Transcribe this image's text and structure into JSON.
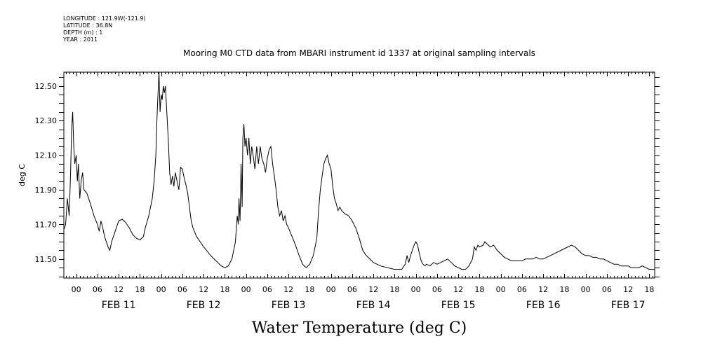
{
  "header": {
    "longitude": "LONGITUDE : 121.9W(-121.9)",
    "latitude": "LATITUDE : 36.8N",
    "depth": "DEPTH (m) : 1",
    "year": "YEAR : 2011"
  },
  "chart_data": {
    "type": "line",
    "title": "Mooring M0 CTD data from MBARI instrument id 1337 at original sampling intervals",
    "ylabel": "deg C",
    "xlabel": "Water Temperature (deg C)",
    "ylim": [
      11.39,
      12.58
    ],
    "xlim": [
      -3.5,
      163.5
    ],
    "x_unit": "hours from 00 FEB 11 2011",
    "yticks": [
      "11.50",
      "11.70",
      "11.90",
      "12.10",
      "12.30",
      "12.50"
    ],
    "xtick_hour_labels": [
      "00",
      "06",
      "12",
      "18",
      "00",
      "06",
      "12",
      "18",
      "00",
      "06",
      "12",
      "18",
      "00",
      "06",
      "12",
      "18",
      "00",
      "06",
      "12",
      "18",
      "00",
      "06",
      "12",
      "18",
      "00",
      "06",
      "12",
      "18"
    ],
    "day_labels": [
      "FEB 11",
      "FEB 12",
      "FEB 13",
      "FEB 14",
      "FEB 15",
      "FEB 16",
      "FEB 17"
    ],
    "grid": false,
    "series": [
      {
        "name": "",
        "points": [
          [
            -3.5,
            11.67
          ],
          [
            -3.0,
            11.7
          ],
          [
            -2.5,
            11.85
          ],
          [
            -2.0,
            11.75
          ],
          [
            -1.6,
            12.0
          ],
          [
            -1.3,
            12.25
          ],
          [
            -1.0,
            12.35
          ],
          [
            -0.7,
            12.15
          ],
          [
            -0.4,
            12.05
          ],
          [
            0.0,
            12.1
          ],
          [
            0.3,
            11.95
          ],
          [
            0.6,
            12.05
          ],
          [
            1.0,
            11.85
          ],
          [
            1.4,
            11.95
          ],
          [
            1.8,
            12.0
          ],
          [
            2.2,
            11.9
          ],
          [
            3.0,
            11.88
          ],
          [
            4.0,
            11.82
          ],
          [
            5.0,
            11.75
          ],
          [
            6.0,
            11.7
          ],
          [
            6.5,
            11.66
          ],
          [
            7.0,
            11.72
          ],
          [
            7.5,
            11.68
          ],
          [
            8.0,
            11.63
          ],
          [
            9.0,
            11.57
          ],
          [
            9.5,
            11.55
          ],
          [
            10.0,
            11.6
          ],
          [
            11.0,
            11.66
          ],
          [
            12.0,
            11.72
          ],
          [
            13.0,
            11.73
          ],
          [
            14.0,
            11.71
          ],
          [
            15.0,
            11.68
          ],
          [
            16.0,
            11.64
          ],
          [
            17.0,
            11.62
          ],
          [
            18.0,
            11.61
          ],
          [
            19.0,
            11.63
          ],
          [
            19.5,
            11.68
          ],
          [
            20.5,
            11.75
          ],
          [
            21.5,
            11.85
          ],
          [
            22.0,
            11.95
          ],
          [
            22.5,
            12.1
          ],
          [
            22.8,
            12.3
          ],
          [
            23.1,
            12.45
          ],
          [
            23.4,
            12.58
          ],
          [
            23.7,
            12.35
          ],
          [
            24.0,
            12.45
          ],
          [
            24.3,
            12.42
          ],
          [
            24.6,
            12.5
          ],
          [
            24.9,
            12.46
          ],
          [
            25.2,
            12.5
          ],
          [
            25.6,
            12.35
          ],
          [
            26.0,
            12.2
          ],
          [
            26.4,
            12.0
          ],
          [
            26.8,
            11.93
          ],
          [
            27.2,
            11.98
          ],
          [
            27.6,
            11.92
          ],
          [
            28.0,
            12.0
          ],
          [
            28.5,
            11.95
          ],
          [
            29.0,
            11.9
          ],
          [
            29.5,
            12.03
          ],
          [
            30.0,
            12.02
          ],
          [
            30.5,
            11.97
          ],
          [
            31.0,
            11.93
          ],
          [
            31.5,
            11.88
          ],
          [
            32.0,
            11.8
          ],
          [
            32.5,
            11.72
          ],
          [
            33.0,
            11.68
          ],
          [
            34.0,
            11.63
          ],
          [
            36.0,
            11.57
          ],
          [
            38.0,
            11.52
          ],
          [
            40.0,
            11.48
          ],
          [
            41.0,
            11.46
          ],
          [
            42.0,
            11.45
          ],
          [
            43.0,
            11.46
          ],
          [
            44.0,
            11.5
          ],
          [
            45.0,
            11.6
          ],
          [
            45.5,
            11.75
          ],
          [
            45.8,
            11.7
          ],
          [
            46.0,
            11.85
          ],
          [
            46.3,
            11.72
          ],
          [
            46.6,
            12.05
          ],
          [
            46.9,
            11.8
          ],
          [
            47.1,
            12.2
          ],
          [
            47.4,
            12.28
          ],
          [
            47.7,
            12.15
          ],
          [
            48.0,
            12.2
          ],
          [
            48.4,
            12.1
          ],
          [
            48.8,
            12.2
          ],
          [
            49.2,
            12.05
          ],
          [
            49.6,
            12.15
          ],
          [
            50.0,
            12.1
          ],
          [
            50.5,
            12.02
          ],
          [
            51.0,
            12.15
          ],
          [
            51.5,
            12.05
          ],
          [
            52.0,
            12.15
          ],
          [
            52.5,
            12.08
          ],
          [
            53.0,
            12.05
          ],
          [
            53.5,
            12.0
          ],
          [
            54.0,
            12.08
          ],
          [
            54.5,
            12.13
          ],
          [
            55.0,
            12.15
          ],
          [
            55.5,
            12.05
          ],
          [
            56.0,
            11.98
          ],
          [
            56.5,
            11.9
          ],
          [
            57.0,
            11.8
          ],
          [
            57.5,
            11.75
          ],
          [
            58.0,
            11.78
          ],
          [
            58.5,
            11.72
          ],
          [
            59.0,
            11.75
          ],
          [
            59.5,
            11.7
          ],
          [
            60.0,
            11.68
          ],
          [
            61.0,
            11.63
          ],
          [
            62.0,
            11.58
          ],
          [
            63.0,
            11.52
          ],
          [
            64.0,
            11.47
          ],
          [
            65.0,
            11.45
          ],
          [
            66.0,
            11.47
          ],
          [
            67.0,
            11.52
          ],
          [
            68.0,
            11.62
          ],
          [
            68.5,
            11.78
          ],
          [
            69.0,
            11.9
          ],
          [
            69.5,
            11.98
          ],
          [
            70.0,
            12.05
          ],
          [
            70.5,
            12.08
          ],
          [
            71.0,
            12.1
          ],
          [
            71.5,
            12.05
          ],
          [
            72.0,
            12.02
          ],
          [
            72.5,
            11.92
          ],
          [
            73.0,
            11.85
          ],
          [
            73.5,
            11.82
          ],
          [
            74.0,
            11.78
          ],
          [
            74.5,
            11.8
          ],
          [
            75.0,
            11.78
          ],
          [
            76.0,
            11.76
          ],
          [
            77.0,
            11.75
          ],
          [
            78.0,
            11.72
          ],
          [
            79.0,
            11.68
          ],
          [
            80.0,
            11.62
          ],
          [
            81.0,
            11.55
          ],
          [
            82.0,
            11.52
          ],
          [
            84.0,
            11.48
          ],
          [
            86.0,
            11.46
          ],
          [
            88.0,
            11.45
          ],
          [
            90.0,
            11.44
          ],
          [
            92.0,
            11.44
          ],
          [
            93.0,
            11.47
          ],
          [
            93.5,
            11.52
          ],
          [
            94.0,
            11.48
          ],
          [
            94.5,
            11.52
          ],
          [
            95.0,
            11.55
          ],
          [
            95.5,
            11.58
          ],
          [
            96.0,
            11.6
          ],
          [
            96.5,
            11.58
          ],
          [
            97.0,
            11.53
          ],
          [
            97.5,
            11.49
          ],
          [
            98.0,
            11.47
          ],
          [
            98.5,
            11.46
          ],
          [
            99.0,
            11.47
          ],
          [
            100.0,
            11.46
          ],
          [
            101.0,
            11.48
          ],
          [
            102.0,
            11.47
          ],
          [
            103.0,
            11.48
          ],
          [
            104.0,
            11.49
          ],
          [
            105.0,
            11.5
          ],
          [
            106.0,
            11.48
          ],
          [
            107.0,
            11.46
          ],
          [
            108.0,
            11.45
          ],
          [
            109.0,
            11.44
          ],
          [
            110.0,
            11.44
          ],
          [
            111.0,
            11.46
          ],
          [
            112.0,
            11.5
          ],
          [
            112.5,
            11.57
          ],
          [
            113.0,
            11.55
          ],
          [
            113.5,
            11.58
          ],
          [
            114.0,
            11.57
          ],
          [
            115.0,
            11.58
          ],
          [
            115.5,
            11.6
          ],
          [
            116.0,
            11.59
          ],
          [
            117.0,
            11.57
          ],
          [
            118.0,
            11.58
          ],
          [
            119.0,
            11.55
          ],
          [
            120.0,
            11.53
          ],
          [
            121.0,
            11.51
          ],
          [
            122.0,
            11.5
          ],
          [
            123.0,
            11.49
          ],
          [
            124.0,
            11.49
          ],
          [
            125.0,
            11.49
          ],
          [
            126.0,
            11.49
          ],
          [
            127.0,
            11.5
          ],
          [
            128.0,
            11.5
          ],
          [
            129.0,
            11.5
          ],
          [
            130.0,
            11.51
          ],
          [
            131.0,
            11.5
          ],
          [
            132.0,
            11.5
          ],
          [
            133.0,
            11.51
          ],
          [
            134.0,
            11.52
          ],
          [
            135.0,
            11.53
          ],
          [
            136.0,
            11.54
          ],
          [
            137.0,
            11.55
          ],
          [
            138.0,
            11.56
          ],
          [
            139.0,
            11.57
          ],
          [
            140.0,
            11.58
          ],
          [
            141.0,
            11.57
          ],
          [
            142.0,
            11.55
          ],
          [
            143.0,
            11.53
          ],
          [
            144.0,
            11.52
          ],
          [
            145.0,
            11.52
          ],
          [
            146.0,
            11.51
          ],
          [
            147.0,
            11.51
          ],
          [
            148.0,
            11.5
          ],
          [
            149.0,
            11.5
          ],
          [
            150.0,
            11.49
          ],
          [
            151.0,
            11.48
          ],
          [
            152.0,
            11.47
          ],
          [
            153.0,
            11.47
          ],
          [
            154.0,
            11.46
          ],
          [
            155.0,
            11.46
          ],
          [
            156.0,
            11.46
          ],
          [
            157.0,
            11.45
          ],
          [
            158.0,
            11.45
          ],
          [
            159.0,
            11.45
          ],
          [
            160.0,
            11.46
          ],
          [
            161.0,
            11.45
          ],
          [
            162.0,
            11.44
          ],
          [
            163.5,
            11.44
          ]
        ]
      }
    ]
  }
}
